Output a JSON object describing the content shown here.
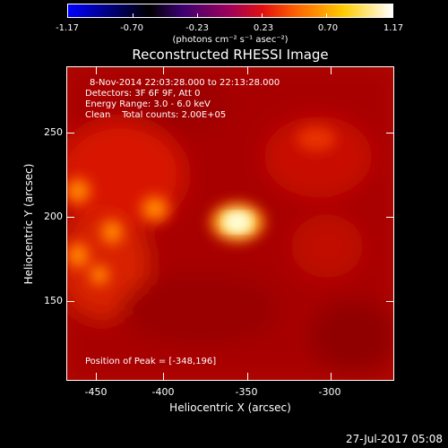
{
  "colorbar": {
    "tick_labels": [
      "-1.17",
      "-0.70",
      "-0.23",
      "0.23",
      "0.70",
      "1.17"
    ],
    "units": "(photons cm⁻² s⁻¹ asec⁻²)"
  },
  "title": "Reconstructed RHESSI Image",
  "info": {
    "line1": "8-Nov-2014 22:03:28.000 to 22:13:28.000",
    "line2": "Detectors: 3F 6F 9F, Att 0",
    "line3": "Energy Range: 3.0 - 6.0 keV",
    "line4": "Clean    Total counts: 2.00E+05",
    "peak": "Position of Peak = [-348,196]"
  },
  "axes": {
    "xlabel": "Heliocentric X (arcsec)",
    "ylabel": "Heliocentric Y (arcsec)",
    "x_ticks": [
      "-450",
      "-400",
      "-350",
      "-300"
    ],
    "y_ticks": [
      "250",
      "200",
      "150"
    ]
  },
  "timestamp": "27-Jul-2017 05:08"
}
